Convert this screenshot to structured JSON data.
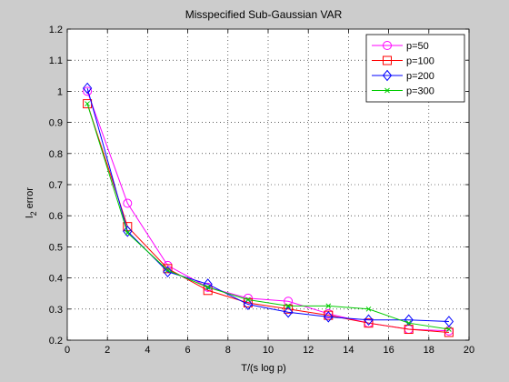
{
  "chart_data": {
    "type": "line",
    "title": "Misspecified Sub-Gaussian VAR",
    "xlabel": "T/(s log p)",
    "ylabel_base": "l",
    "ylabel_sub": "2",
    "ylabel_rest": " error",
    "xlim": [
      0,
      20
    ],
    "ylim": [
      0.2,
      1.2
    ],
    "xticks": [
      0,
      2,
      4,
      6,
      8,
      10,
      12,
      14,
      16,
      18,
      20
    ],
    "yticks": [
      0.2,
      0.3,
      0.4,
      0.5,
      0.6,
      0.7,
      0.8,
      0.9,
      1,
      1.1,
      1.2
    ],
    "grid": true,
    "legend_position": "top-right",
    "x": [
      1,
      3,
      5,
      7,
      9,
      11,
      13,
      15,
      17,
      19
    ],
    "series": [
      {
        "name": "p=50",
        "marker": "circle",
        "color": "#ff00ff",
        "values": [
          1.0,
          0.64,
          0.44,
          0.37,
          0.335,
          0.325,
          0.285,
          0.255,
          0.235,
          0.23
        ]
      },
      {
        "name": "p=100",
        "marker": "square",
        "color": "#ff0000",
        "values": [
          0.96,
          0.565,
          0.43,
          0.36,
          0.32,
          0.3,
          0.28,
          0.255,
          0.235,
          0.225
        ]
      },
      {
        "name": "p=200",
        "marker": "diamond",
        "color": "#0000ff",
        "values": [
          1.01,
          0.55,
          0.42,
          0.38,
          0.315,
          0.29,
          0.275,
          0.265,
          0.265,
          0.26
        ]
      },
      {
        "name": "p=300",
        "marker": "x",
        "color": "#00cc00",
        "values": [
          0.96,
          0.545,
          0.425,
          0.37,
          0.33,
          0.31,
          0.31,
          0.3,
          0.255,
          0.235
        ]
      }
    ]
  }
}
